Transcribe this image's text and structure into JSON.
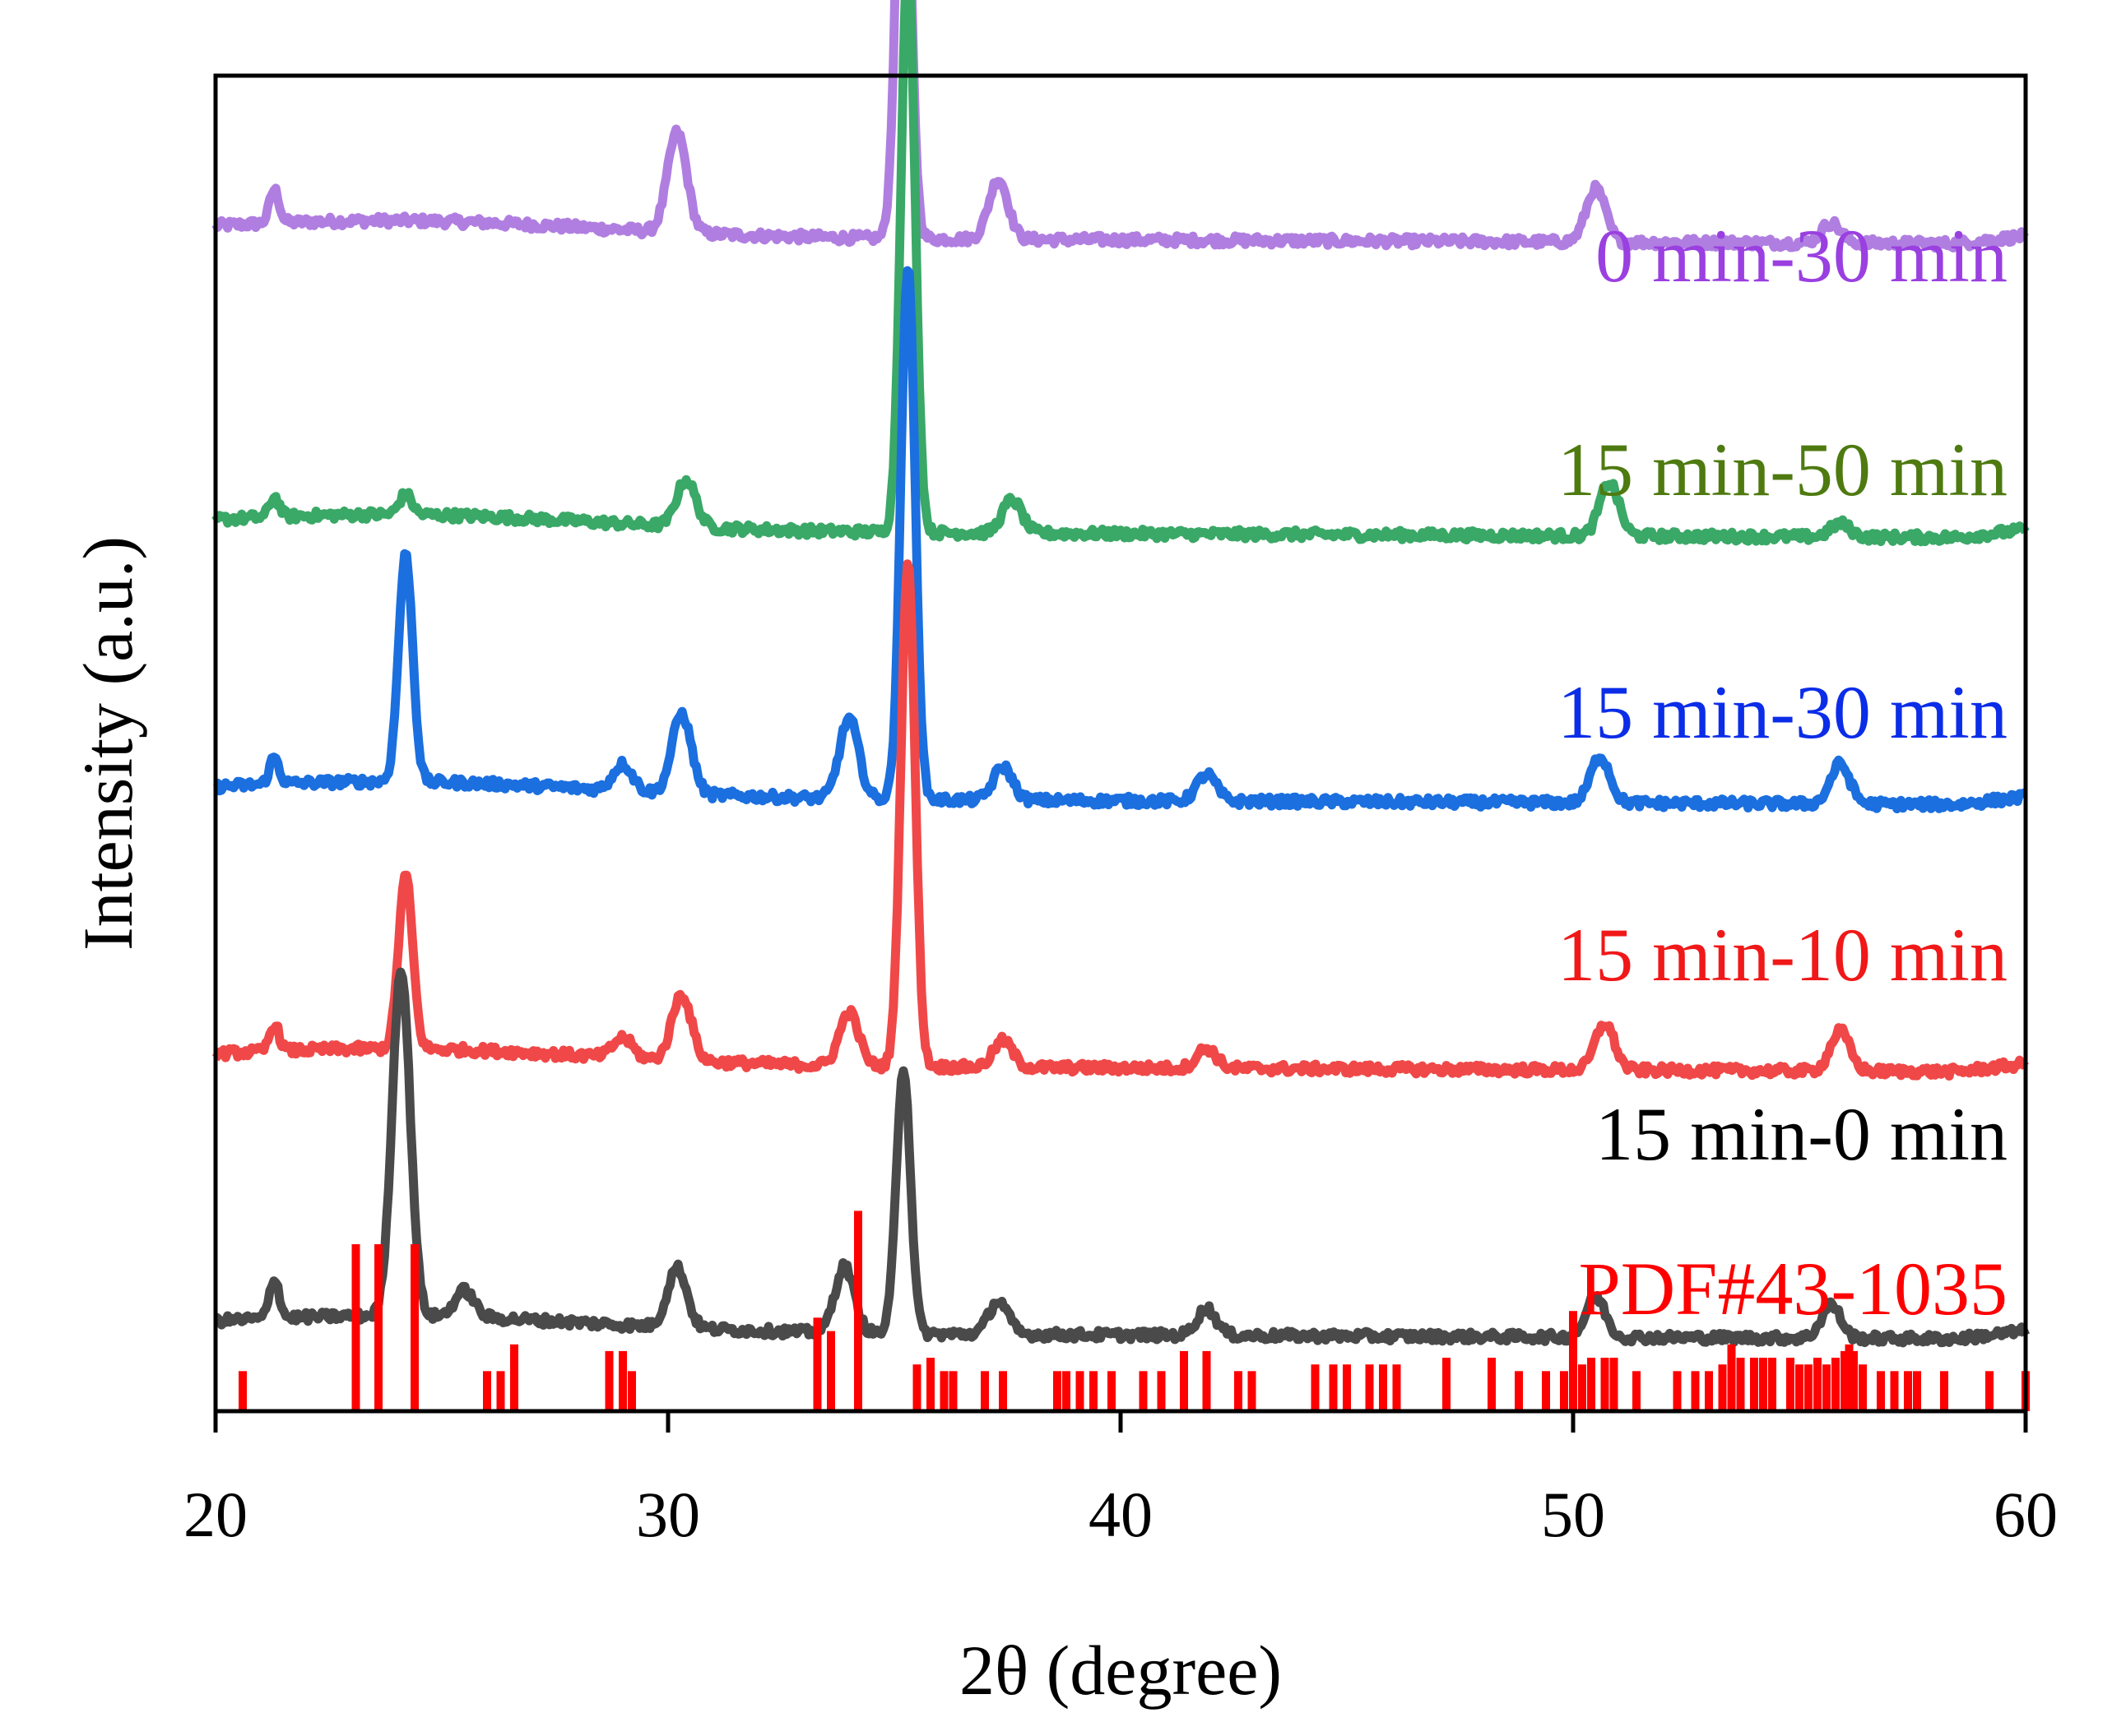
{
  "chart_data": {
    "type": "line",
    "title": "",
    "xlabel": "2θ (degree)",
    "ylabel": "Intensity (a.u.)",
    "xlim": [
      20,
      60
    ],
    "xticks": [
      20,
      30,
      40,
      50,
      60
    ],
    "xtick_labels": [
      "20",
      "30",
      "40",
      "50",
      "60"
    ],
    "y_ticks_shown": false,
    "grid": false,
    "series": [
      {
        "name": "0 min-30 min",
        "color": "#b07ee0",
        "label_color": "#9a3fe0",
        "baseline": 88,
        "peaks": [
          [
            21.3,
            2.5,
            0.15
          ],
          [
            30.2,
            7.5,
            0.3
          ],
          [
            35.2,
            37,
            0.22
          ],
          [
            37.3,
            4.5,
            0.3
          ],
          [
            50.5,
            4,
            0.3
          ],
          [
            55.7,
            1.5,
            0.3
          ]
        ]
      },
      {
        "name": "15 min-50 min",
        "color": "#3aa867",
        "label_color": "#4e7a10",
        "baseline": 66,
        "peaks": [
          [
            21.3,
            1.5,
            0.15
          ],
          [
            24.2,
            1.5,
            0.2
          ],
          [
            30.4,
            3.5,
            0.3
          ],
          [
            35.3,
            43,
            0.22
          ],
          [
            37.6,
            2.5,
            0.3
          ],
          [
            50.8,
            4,
            0.3
          ],
          [
            55.9,
            1,
            0.3
          ]
        ]
      },
      {
        "name": "15 min-30 min",
        "color": "#1b6fdf",
        "label_color": "#0b2de8",
        "baseline": 46,
        "peaks": [
          [
            21.3,
            2,
            0.15
          ],
          [
            24.2,
            17,
            0.22
          ],
          [
            29.0,
            2,
            0.3
          ],
          [
            30.3,
            6,
            0.3
          ],
          [
            34.0,
            6,
            0.3
          ],
          [
            35.3,
            40,
            0.22
          ],
          [
            37.4,
            2.5,
            0.3
          ],
          [
            41.9,
            2,
            0.3
          ],
          [
            50.6,
            3.5,
            0.3
          ],
          [
            55.9,
            3,
            0.3
          ]
        ]
      },
      {
        "name": "15 min-10 min",
        "color": "#f04848",
        "label_color": "#f01818",
        "baseline": 26,
        "peaks": [
          [
            21.3,
            2,
            0.15
          ],
          [
            24.2,
            13,
            0.22
          ],
          [
            29.0,
            1.5,
            0.3
          ],
          [
            30.3,
            5,
            0.3
          ],
          [
            34.0,
            4,
            0.3
          ],
          [
            35.3,
            38,
            0.22
          ],
          [
            37.4,
            2,
            0.3
          ],
          [
            41.9,
            1.5,
            0.3
          ],
          [
            50.7,
            3.5,
            0.3
          ],
          [
            55.9,
            3,
            0.3
          ]
        ]
      },
      {
        "name": "15 min-0 min",
        "color": "#4a4a4a",
        "label_color": "#000000",
        "baseline": 6,
        "peaks": [
          [
            21.3,
            3,
            0.15
          ],
          [
            24.1,
            26,
            0.28
          ],
          [
            25.5,
            2,
            0.3
          ],
          [
            30.2,
            4.5,
            0.3
          ],
          [
            33.9,
            5,
            0.3
          ],
          [
            35.2,
            20,
            0.22
          ],
          [
            37.3,
            2.5,
            0.3
          ],
          [
            41.9,
            2,
            0.3
          ],
          [
            50.5,
            3,
            0.3
          ],
          [
            55.7,
            2.5,
            0.3
          ]
        ]
      }
    ],
    "reference": {
      "name": "PDF#43-1035",
      "color": "#ff0000",
      "peaks": [
        [
          20.6,
          3
        ],
        [
          23.1,
          12.5
        ],
        [
          23.6,
          12.5
        ],
        [
          24.4,
          12.5
        ],
        [
          26.0,
          3
        ],
        [
          26.3,
          3
        ],
        [
          26.6,
          5
        ],
        [
          28.7,
          4.5
        ],
        [
          29.0,
          4.5
        ],
        [
          29.2,
          3
        ],
        [
          33.3,
          7
        ],
        [
          33.6,
          6
        ],
        [
          34.2,
          15
        ],
        [
          35.5,
          3.5
        ],
        [
          35.8,
          4
        ],
        [
          36.1,
          3
        ],
        [
          36.3,
          3
        ],
        [
          37.0,
          3
        ],
        [
          37.4,
          3
        ],
        [
          38.6,
          3
        ],
        [
          38.8,
          3
        ],
        [
          39.1,
          3
        ],
        [
          39.4,
          3
        ],
        [
          39.8,
          3
        ],
        [
          40.5,
          3
        ],
        [
          40.9,
          3
        ],
        [
          41.4,
          4.5
        ],
        [
          41.9,
          4.5
        ],
        [
          42.6,
          3
        ],
        [
          42.9,
          3
        ],
        [
          44.3,
          3.5
        ],
        [
          44.7,
          3.5
        ],
        [
          45.0,
          3.5
        ],
        [
          45.5,
          3.5
        ],
        [
          45.8,
          3.5
        ],
        [
          46.1,
          3.5
        ],
        [
          47.2,
          4
        ],
        [
          48.2,
          4
        ],
        [
          48.8,
          3
        ],
        [
          49.4,
          3
        ],
        [
          49.8,
          3
        ],
        [
          50.0,
          7.5
        ],
        [
          50.2,
          3.5
        ],
        [
          50.4,
          4
        ],
        [
          50.7,
          4
        ],
        [
          50.9,
          4
        ],
        [
          51.4,
          3
        ],
        [
          52.3,
          3
        ],
        [
          52.7,
          3
        ],
        [
          53.0,
          3
        ],
        [
          53.3,
          3.5
        ],
        [
          53.5,
          5
        ],
        [
          53.7,
          4
        ],
        [
          54.0,
          4
        ],
        [
          54.2,
          4
        ],
        [
          54.4,
          4
        ],
        [
          54.8,
          4
        ],
        [
          55.0,
          3.5
        ],
        [
          55.2,
          3.5
        ],
        [
          55.4,
          4
        ],
        [
          55.6,
          3.5
        ],
        [
          55.8,
          4
        ],
        [
          56.0,
          4.5
        ],
        [
          56.1,
          5
        ],
        [
          56.2,
          4.5
        ],
        [
          56.4,
          3.5
        ],
        [
          56.8,
          3
        ],
        [
          57.1,
          3
        ],
        [
          57.4,
          3
        ],
        [
          57.6,
          3
        ],
        [
          58.2,
          3
        ],
        [
          59.2,
          3
        ],
        [
          60.0,
          3
        ]
      ]
    }
  }
}
